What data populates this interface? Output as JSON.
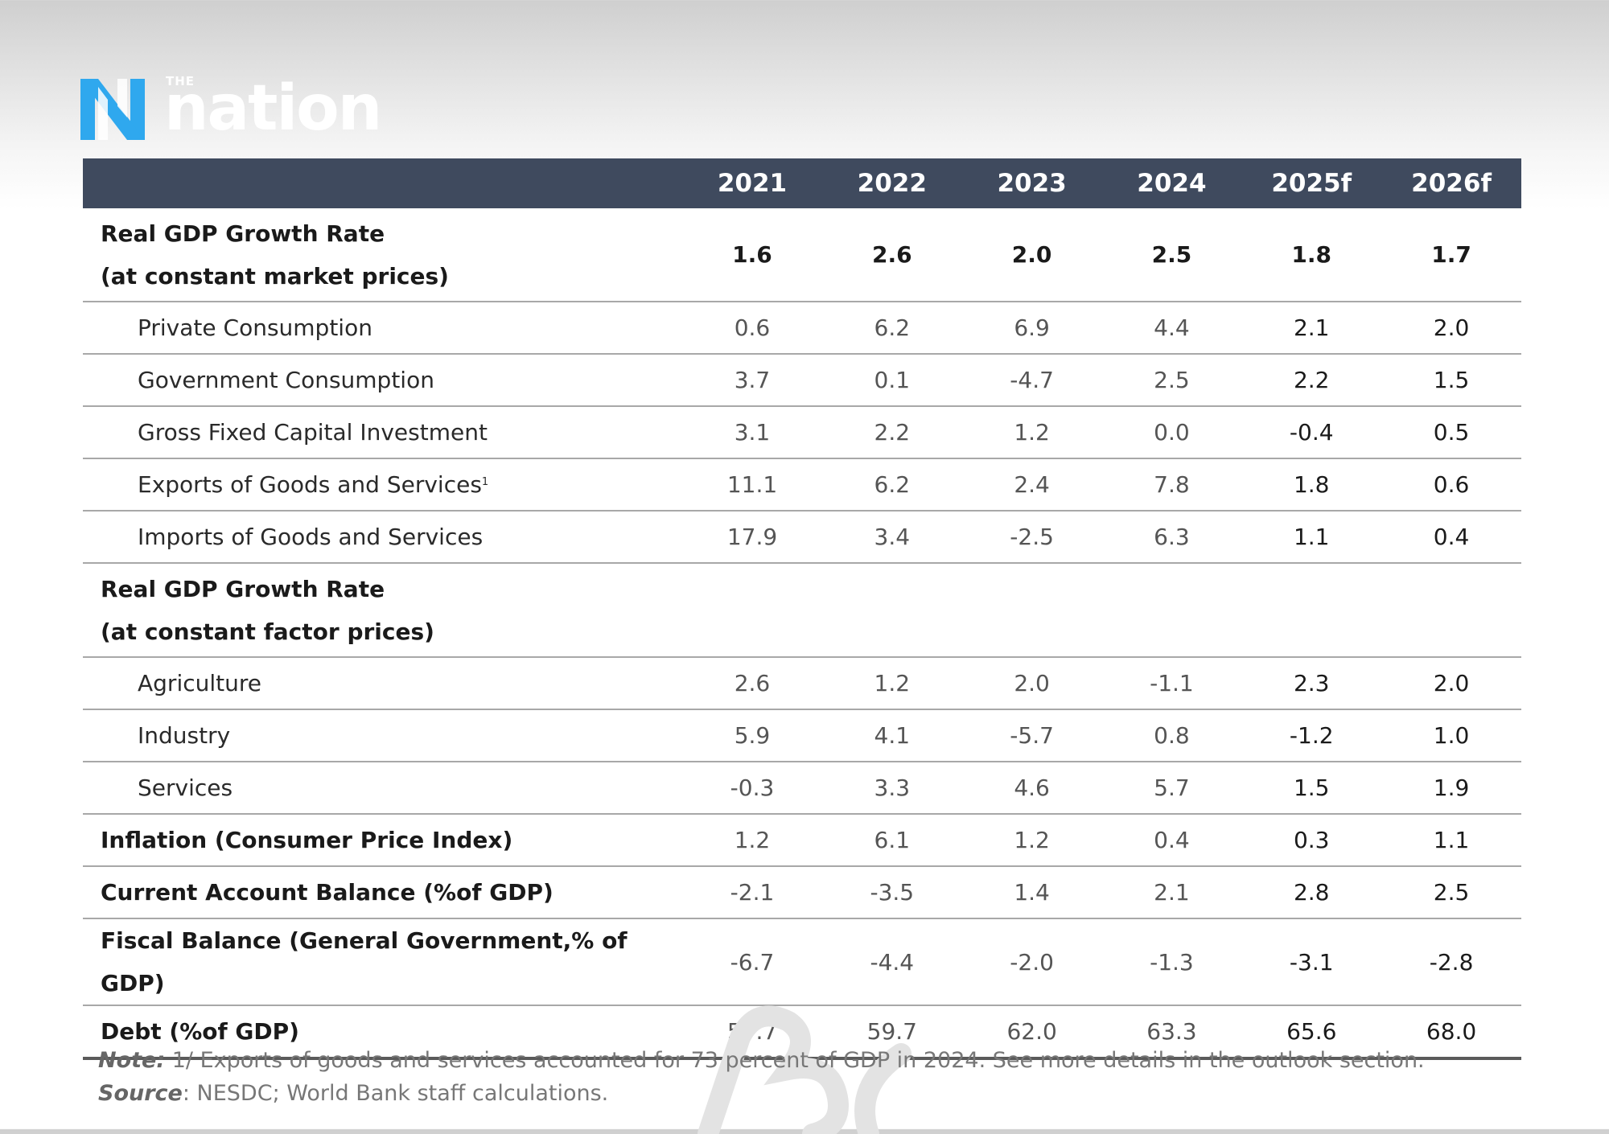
{
  "brand": {
    "the": "THE",
    "name": "nation",
    "colors": {
      "mark_blue": "#2fa8ee",
      "mark_white": "#ffffff"
    }
  },
  "table": {
    "header_bg": "#3f4a5e",
    "columns": [
      "2021",
      "2022",
      "2023",
      "2024",
      "2025f",
      "2026f"
    ],
    "rows": [
      {
        "label_line1": "Real GDP Growth Rate",
        "label_line2": "(at constant market prices)",
        "values": [
          "1.6",
          "2.6",
          "2.0",
          "2.5",
          "1.8",
          "1.7"
        ]
      },
      {
        "label": "Private Consumption",
        "values": [
          "0.6",
          "6.2",
          "6.9",
          "4.4",
          "2.1",
          "2.0"
        ]
      },
      {
        "label": "Government Consumption",
        "values": [
          "3.7",
          "0.1",
          "-4.7",
          "2.5",
          "2.2",
          "1.5"
        ]
      },
      {
        "label": "Gross Fixed Capital Investment",
        "values": [
          "3.1",
          "2.2",
          "1.2",
          "0.0",
          "-0.4",
          "0.5"
        ]
      },
      {
        "label": "Exports of Goods and Services",
        "footnote": "1",
        "values": [
          "11.1",
          "6.2",
          "2.4",
          "7.8",
          "1.8",
          "0.6"
        ]
      },
      {
        "label": "Imports of Goods and Services",
        "values": [
          "17.9",
          "3.4",
          "-2.5",
          "6.3",
          "1.1",
          "0.4"
        ]
      },
      {
        "label_line1": "Real GDP Growth Rate",
        "label_line2": "(at constant factor prices)"
      },
      {
        "label": "Agriculture",
        "values": [
          "2.6",
          "1.2",
          "2.0",
          "-1.1",
          "2.3",
          "2.0"
        ]
      },
      {
        "label": "Industry",
        "values": [
          "5.9",
          "4.1",
          "-5.7",
          "0.8",
          "-1.2",
          "1.0"
        ]
      },
      {
        "label": "Services",
        "values": [
          "-0.3",
          "3.3",
          "4.6",
          "5.7",
          "1.5",
          "1.9"
        ]
      },
      {
        "label": "Inflation (Consumer Price Index)",
        "values": [
          "1.2",
          "6.1",
          "1.2",
          "0.4",
          "0.3",
          "1.1"
        ]
      },
      {
        "label": "Current Account Balance (%of GDP)",
        "values": [
          "-2.1",
          "-3.5",
          "1.4",
          "2.1",
          "2.8",
          "2.5"
        ]
      },
      {
        "label": "Fiscal Balance (General Government,% of GDP)",
        "values": [
          "-6.7",
          "-4.4",
          "-2.0",
          "-1.3",
          "-3.1",
          "-2.8"
        ]
      },
      {
        "label": "Debt (%of GDP)",
        "values": [
          "57.7",
          "59.7",
          "62.0",
          "63.3",
          "65.6",
          "68.0"
        ]
      }
    ]
  },
  "notes": {
    "note_label": "Note:",
    "note_text": " 1/ Exports of goods and services accounted for 73 percent of GDP in 2024. See more details in the outlook section.",
    "source_label": "Source",
    "source_text": ": NESDC; World Bank staff calculations."
  }
}
